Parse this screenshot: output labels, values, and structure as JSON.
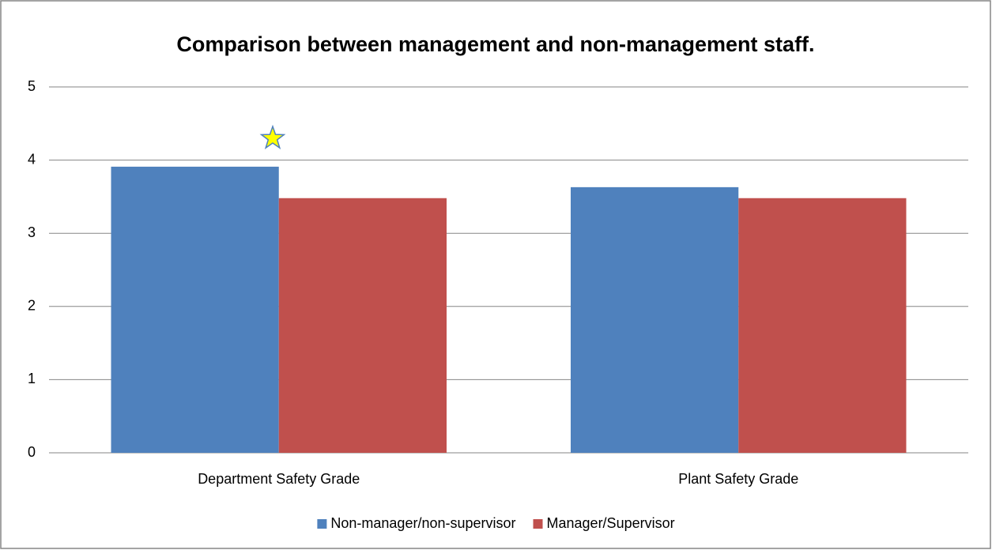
{
  "chart_data": {
    "type": "bar",
    "title": "Comparison between management and non-management staff.",
    "categories": [
      "Department Safety Grade",
      "Plant Safety Grade"
    ],
    "series": [
      {
        "name": "Non-manager/non-supervisor",
        "color": "#4f81bd",
        "values": [
          3.91,
          3.63
        ]
      },
      {
        "name": "Manager/Supervisor",
        "color": "#c0504d",
        "values": [
          3.48,
          3.48
        ]
      }
    ],
    "ylim": [
      0,
      5
    ],
    "yticks": [
      0,
      1,
      2,
      3,
      4,
      5
    ],
    "grid": true,
    "legend": "bottom"
  }
}
